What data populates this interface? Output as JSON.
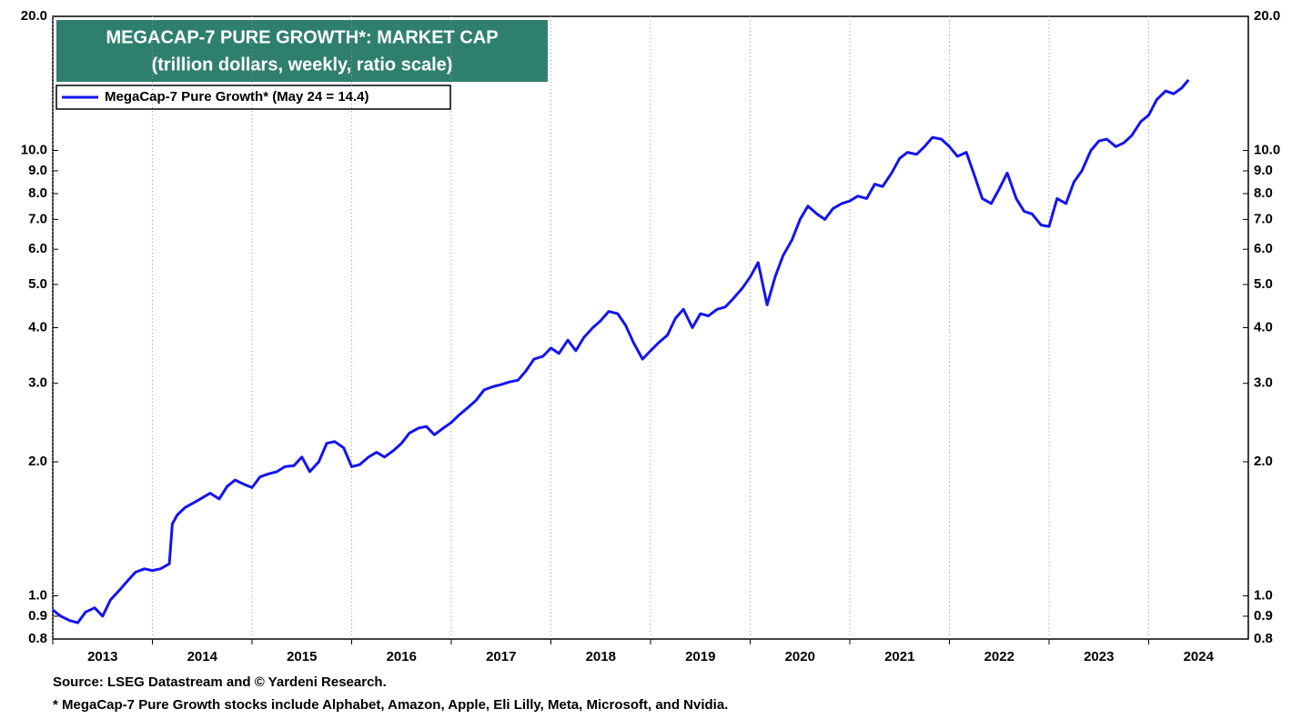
{
  "chart_data": {
    "type": "line",
    "title": "MEGACAP-7 PURE GROWTH*: MARKET CAP",
    "subtitle": "(trillion dollars, weekly, ratio scale)",
    "source": "Source: LSEG Datastream and © Yardeni Research.",
    "footnote": "* MegaCap-7 Pure Growth stocks include Alphabet, Amazon, Apple, Eli Lilly, Meta, Microsoft, and Nvidia.",
    "log_scale": true,
    "grid": "x",
    "legend": "upper left",
    "xlim": [
      2013,
      2025
    ],
    "xticks": [
      2013,
      2014,
      2015,
      2016,
      2017,
      2018,
      2019,
      2020,
      2021,
      2022,
      2023,
      2024
    ],
    "ylim": [
      0.8,
      20
    ],
    "yticks": [
      {
        "value": 0.8,
        "label": "0.8"
      },
      {
        "value": 0.9,
        "label": "0.9"
      },
      {
        "value": 1,
        "label": "1.0"
      },
      {
        "value": 2,
        "label": "2.0"
      },
      {
        "value": 3,
        "label": "3.0"
      },
      {
        "value": 4,
        "label": "4.0"
      },
      {
        "value": 5,
        "label": "5.0"
      },
      {
        "value": 6,
        "label": "6.0"
      },
      {
        "value": 7,
        "label": "7.0"
      },
      {
        "value": 8,
        "label": "8.0"
      },
      {
        "value": 9,
        "label": "9.0"
      },
      {
        "value": 10,
        "label": "10.0"
      },
      {
        "value": 20,
        "label": "20.0"
      }
    ],
    "x": [
      2013.0,
      2013.08,
      2013.17,
      2013.25,
      2013.33,
      2013.42,
      2013.5,
      2013.58,
      2013.67,
      2013.75,
      2013.83,
      2013.92,
      2014.0,
      2014.08,
      2014.17,
      2014.2,
      2014.25,
      2014.33,
      2014.42,
      2014.5,
      2014.58,
      2014.67,
      2014.75,
      2014.83,
      2014.92,
      2015.0,
      2015.08,
      2015.17,
      2015.25,
      2015.33,
      2015.42,
      2015.5,
      2015.58,
      2015.67,
      2015.75,
      2015.83,
      2015.92,
      2016.0,
      2016.08,
      2016.17,
      2016.25,
      2016.33,
      2016.42,
      2016.5,
      2016.58,
      2016.67,
      2016.75,
      2016.83,
      2016.92,
      2017.0,
      2017.08,
      2017.17,
      2017.25,
      2017.33,
      2017.42,
      2017.5,
      2017.58,
      2017.67,
      2017.75,
      2017.83,
      2017.92,
      2018.0,
      2018.08,
      2018.17,
      2018.25,
      2018.33,
      2018.42,
      2018.5,
      2018.58,
      2018.67,
      2018.75,
      2018.83,
      2018.92,
      2019.0,
      2019.08,
      2019.17,
      2019.25,
      2019.33,
      2019.42,
      2019.5,
      2019.58,
      2019.67,
      2019.75,
      2019.83,
      2019.92,
      2020.0,
      2020.08,
      2020.17,
      2020.25,
      2020.33,
      2020.42,
      2020.5,
      2020.58,
      2020.67,
      2020.75,
      2020.83,
      2020.92,
      2021.0,
      2021.08,
      2021.17,
      2021.25,
      2021.33,
      2021.42,
      2021.5,
      2021.58,
      2021.67,
      2021.75,
      2021.83,
      2021.92,
      2022.0,
      2022.08,
      2022.17,
      2022.25,
      2022.33,
      2022.42,
      2022.5,
      2022.58,
      2022.67,
      2022.75,
      2022.83,
      2022.92,
      2023.0,
      2023.08,
      2023.17,
      2023.25,
      2023.33,
      2023.42,
      2023.5,
      2023.58,
      2023.67,
      2023.75,
      2023.83,
      2023.92,
      2024.0,
      2024.08,
      2024.17,
      2024.25,
      2024.33,
      2024.4
    ],
    "series": [
      {
        "name": "MegaCap-7 Pure Growth* (May 24 = 14.4)",
        "color": "#1414f0",
        "values": [
          0.93,
          0.9,
          0.88,
          0.87,
          0.92,
          0.94,
          0.9,
          0.98,
          1.03,
          1.08,
          1.13,
          1.15,
          1.14,
          1.15,
          1.18,
          1.45,
          1.52,
          1.58,
          1.62,
          1.66,
          1.7,
          1.65,
          1.76,
          1.82,
          1.78,
          1.75,
          1.85,
          1.88,
          1.9,
          1.95,
          1.96,
          2.05,
          1.9,
          2.0,
          2.2,
          2.22,
          2.15,
          1.95,
          1.97,
          2.05,
          2.1,
          2.05,
          2.12,
          2.2,
          2.32,
          2.38,
          2.4,
          2.3,
          2.38,
          2.45,
          2.55,
          2.65,
          2.75,
          2.9,
          2.95,
          2.98,
          3.02,
          3.05,
          3.2,
          3.4,
          3.45,
          3.6,
          3.5,
          3.75,
          3.55,
          3.8,
          4.0,
          4.15,
          4.35,
          4.3,
          4.05,
          3.7,
          3.4,
          3.55,
          3.7,
          3.85,
          4.2,
          4.4,
          4.0,
          4.3,
          4.25,
          4.4,
          4.45,
          4.65,
          4.9,
          5.2,
          5.6,
          4.5,
          5.2,
          5.8,
          6.3,
          7.0,
          7.5,
          7.2,
          7.0,
          7.4,
          7.6,
          7.7,
          7.9,
          7.8,
          8.4,
          8.3,
          8.9,
          9.6,
          9.9,
          9.8,
          10.2,
          10.7,
          10.6,
          10.2,
          9.7,
          9.9,
          8.8,
          7.8,
          7.6,
          8.2,
          8.9,
          7.8,
          7.3,
          7.2,
          6.8,
          6.75,
          7.8,
          7.6,
          8.5,
          9.0,
          10.0,
          10.5,
          10.6,
          10.2,
          10.4,
          10.8,
          11.6,
          12.0,
          13.0,
          13.6,
          13.4,
          13.8,
          14.4
        ]
      }
    ]
  }
}
